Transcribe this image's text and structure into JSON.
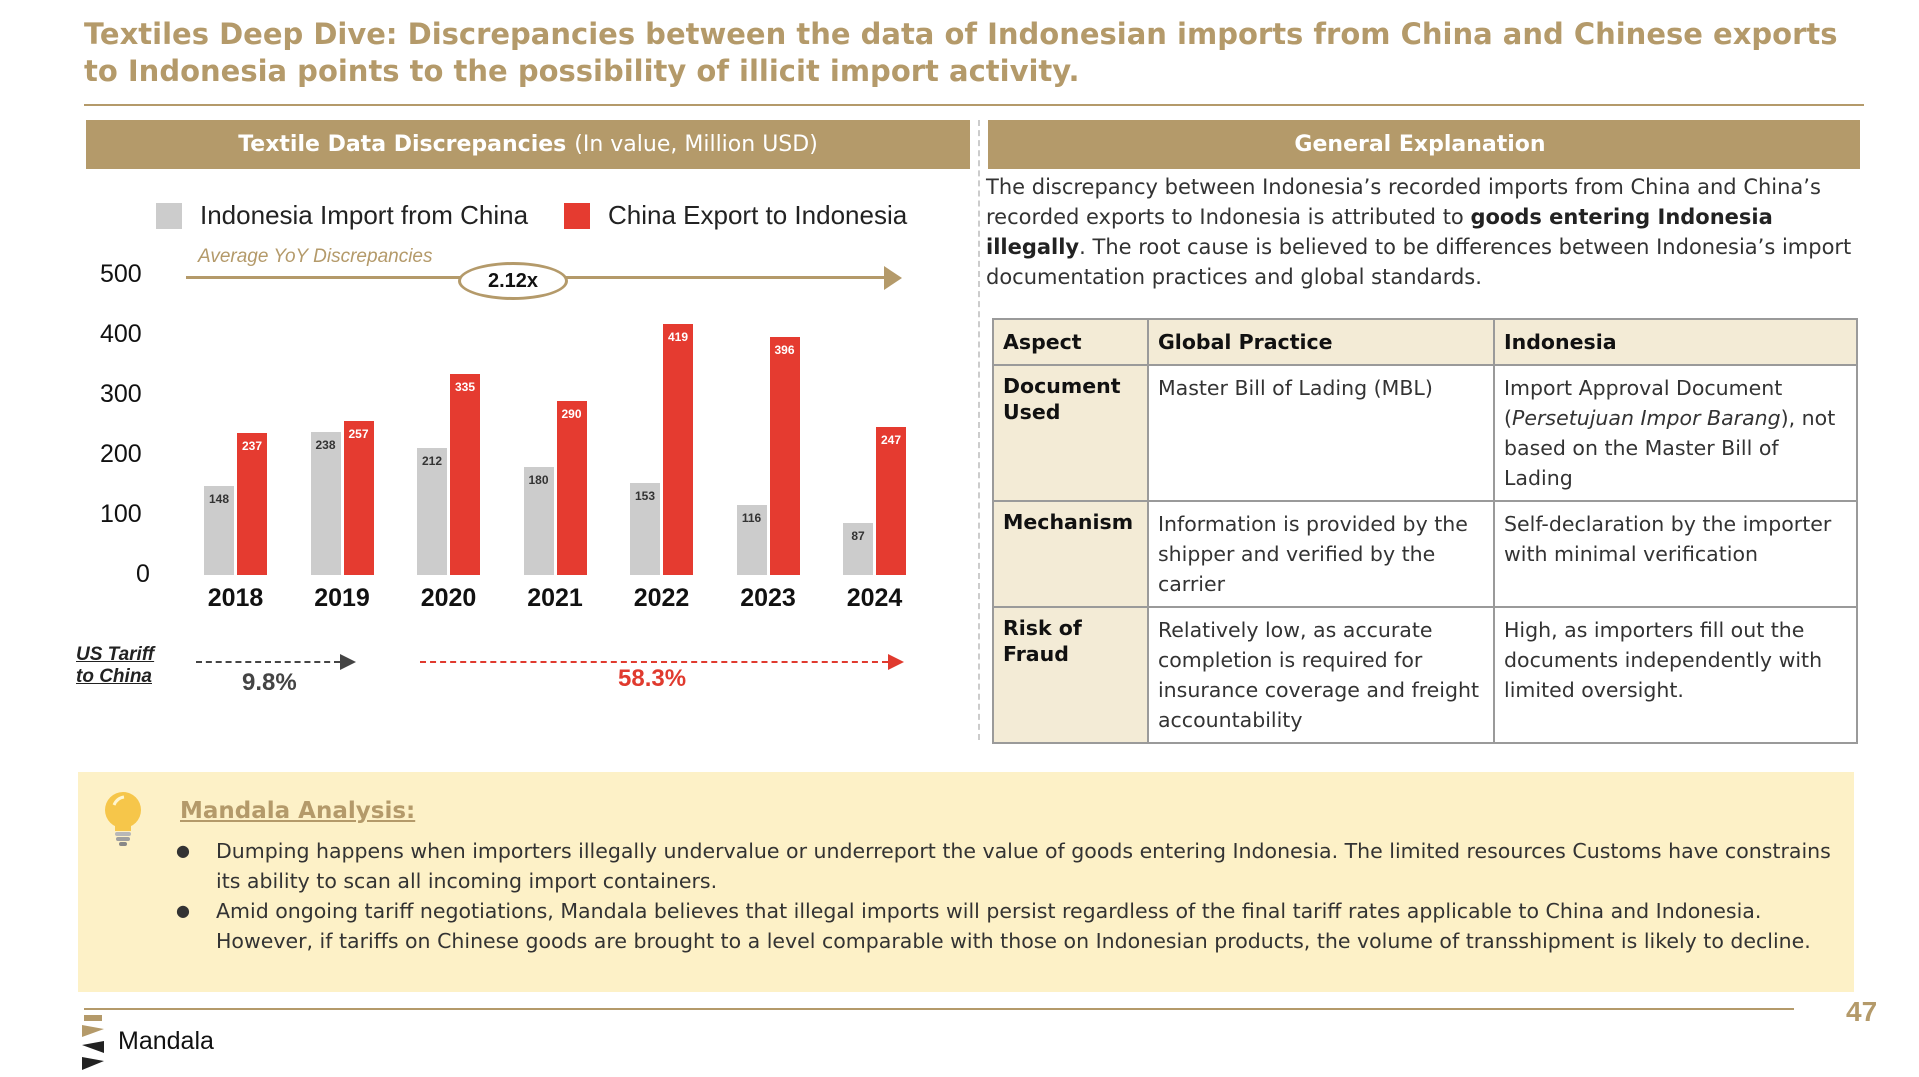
{
  "title": "Textiles Deep Dive: Discrepancies between the data of Indonesian imports from China and Chinese exports to Indonesia points to the possibility of illicit import activity.",
  "left_panel": {
    "header_bold": "Textile Data Discrepancies",
    "header_rest": "(In value, Million USD)"
  },
  "right_panel": {
    "header": "General Explanation"
  },
  "chart_data": {
    "type": "bar",
    "categories": [
      "2018",
      "2019",
      "2020",
      "2021",
      "2022",
      "2023",
      "2024"
    ],
    "series": [
      {
        "name": "Indonesia Import from China",
        "color": "#cccccc",
        "values": [
          148,
          238,
          212,
          180,
          153,
          116,
          87
        ]
      },
      {
        "name": "China Export to Indonesia",
        "color": "#e53b30",
        "values": [
          237,
          257,
          335,
          290,
          419,
          396,
          247
        ]
      }
    ],
    "yticks": [
      "500",
      "400",
      "300",
      "200",
      "100",
      "0"
    ],
    "ylim": [
      0,
      500
    ],
    "grid": false,
    "legend_position": "top",
    "annotation": {
      "label": "Average YoY Discrepancies",
      "value": "2.12x"
    }
  },
  "tariff": {
    "label_line1": "US Tariff",
    "label_line2": "to China",
    "before": "9.8%",
    "after": "58.3%"
  },
  "explanation": {
    "part1": "The discrepancy between Indonesia’s recorded imports from China and China’s recorded exports to Indonesia is attributed to ",
    "bold": "goods entering Indonesia illegally",
    "part2": ". The root cause is believed to be differences between Indonesia’s import documentation practices and global standards."
  },
  "table": {
    "headers": [
      "Aspect",
      "Global Practice",
      "Indonesia"
    ],
    "rows": [
      {
        "aspect": "Document Used",
        "global": "Master Bill of Lading (MBL)",
        "indo_pre": "Import Approval Document (",
        "indo_italic": "Persetujuan Impor Barang",
        "indo_post": "), not based on the Master Bill of Lading"
      },
      {
        "aspect": "Mechanism",
        "global": "Information is provided by the shipper and verified by the carrier",
        "indo": "Self-declaration by the importer with minimal verification"
      },
      {
        "aspect": "Risk of Fraud",
        "global": "Relatively low, as accurate completion is required for insurance coverage and freight accountability",
        "indo": "High, as importers fill out the documents independently with limited oversight."
      }
    ]
  },
  "analysis": {
    "title": "Mandala Analysis:",
    "bullets": [
      "Dumping happens when importers illegally undervalue or underreport the value of goods entering Indonesia. The limited resources Customs have constrains its ability to scan all incoming import containers.",
      "Amid ongoing tariff negotiations, Mandala believes that illegal imports will persist regardless of the final tariff rates applicable to China and Indonesia. However, if tariffs on Chinese goods are brought to a level comparable with those on Indonesian products, the volume of transshipment is likely to decline."
    ]
  },
  "footer": {
    "brand": "Mandala",
    "page": "47"
  },
  "colors": {
    "accent": "#b49a6a",
    "import": "#cccccc",
    "export": "#e53b30",
    "highlight": "#fdf1c7",
    "table_header": "#f3ebd6"
  },
  "icons": {
    "analysis": "lightbulb-icon",
    "brand": "mandala-logo-icon"
  }
}
